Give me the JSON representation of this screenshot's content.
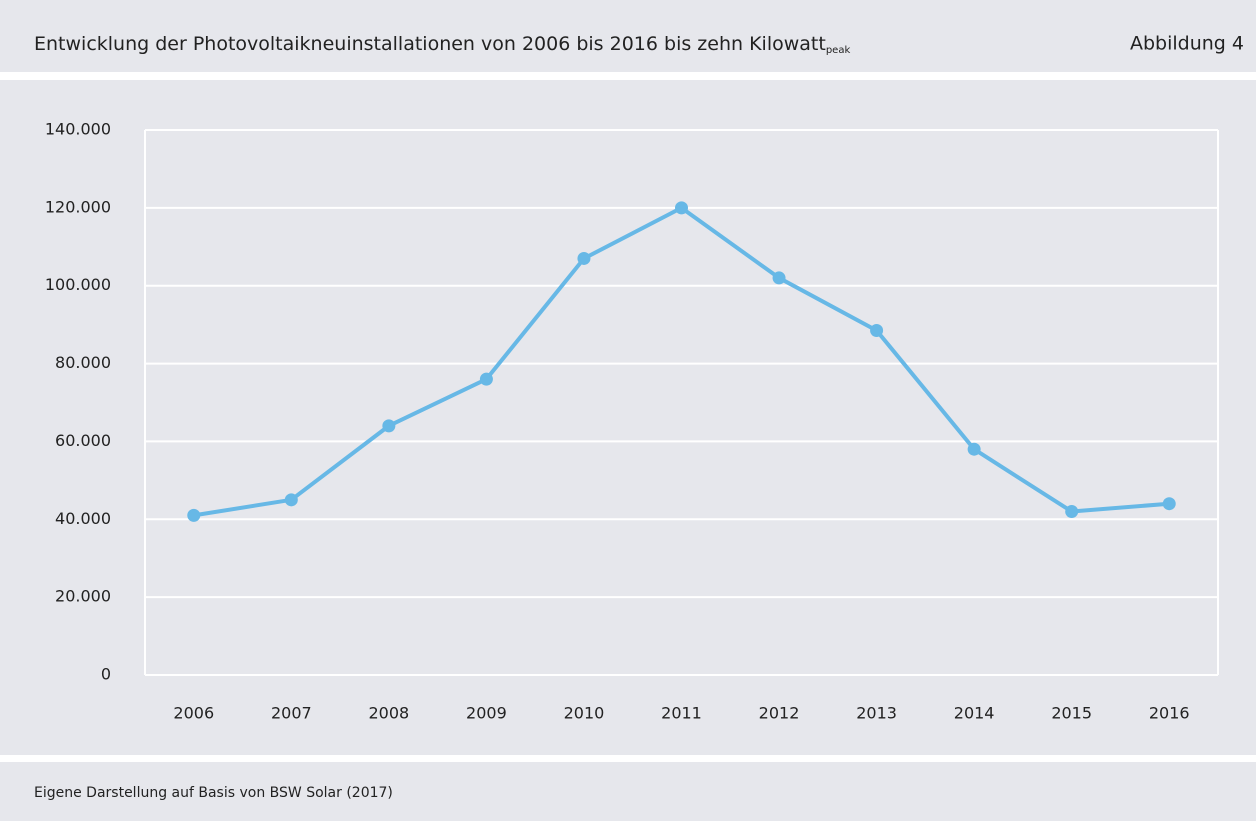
{
  "chart_data": {
    "type": "line",
    "title": "Entwicklung der Photovoltaikneuinstallationen von 2006 bis 2016 bis zehn Kilowatt",
    "title_subscript": "peak",
    "figure_label": "Abbildung 4",
    "source": "Eigene Darstellung auf Basis von BSW Solar (2017)",
    "categories": [
      "2006",
      "2007",
      "2008",
      "2009",
      "2010",
      "2011",
      "2012",
      "2013",
      "2014",
      "2015",
      "2016"
    ],
    "series": [
      {
        "name": "Neuinstallationen",
        "color": "#67b8e6",
        "values": [
          41000,
          45000,
          64000,
          76000,
          107000,
          120000,
          102000,
          88500,
          58000,
          42000,
          44000
        ]
      }
    ],
    "ylim": [
      0,
      140000
    ],
    "yticks": [
      0,
      {
        "value": 20000,
        "label": "20.000"
      },
      {
        "value": 40000,
        "label": "40.000"
      },
      {
        "value": 60000,
        "label": "60.000"
      },
      {
        "value": 80000,
        "label": "80.000"
      },
      {
        "value": 100000,
        "label": "100.000"
      },
      {
        "value": 120000,
        "label": "120.000"
      },
      {
        "value": 140000,
        "label": "140.000"
      }
    ],
    "grid": true
  }
}
